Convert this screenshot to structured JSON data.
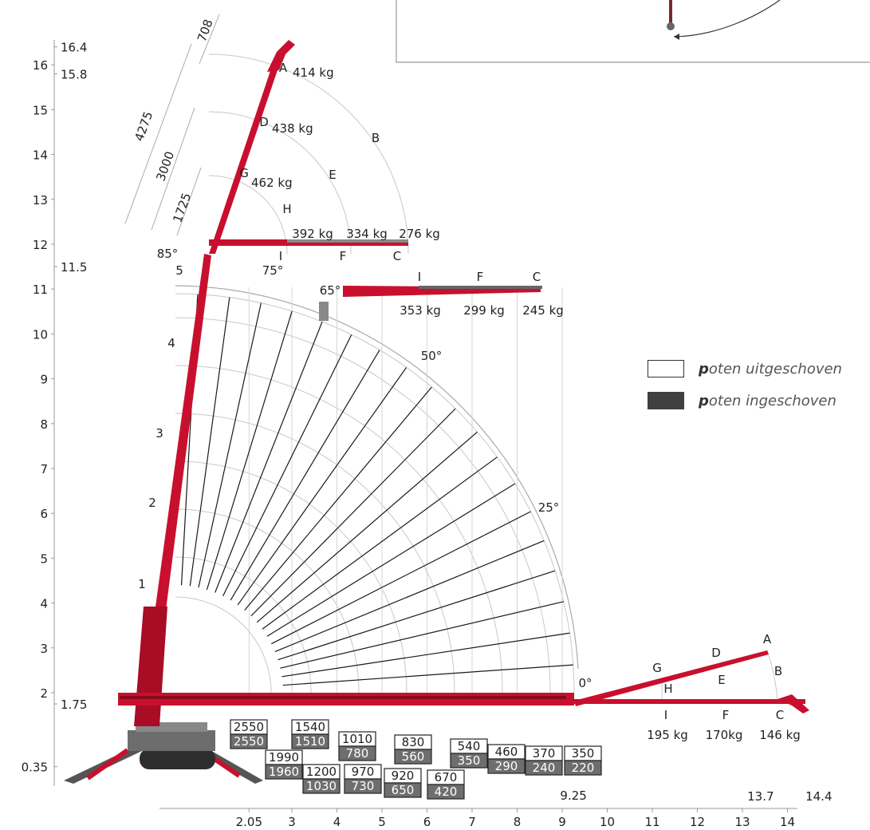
{
  "y_axis_ticks": [
    "16",
    "15",
    "14",
    "13",
    "12",
    "11",
    "10",
    "9",
    "8",
    "7",
    "6",
    "5",
    "4",
    "3",
    "2"
  ],
  "y_axis_marks": [
    "16.4",
    "15.8",
    "11.5",
    "1.75",
    "0.35"
  ],
  "x_axis_ticks": [
    "2.05",
    "3",
    "4",
    "5",
    "6",
    "7",
    "8",
    "9",
    "10",
    "11",
    "12",
    "13",
    "14"
  ],
  "x_axis_marks": [
    "9.25",
    "13.7",
    "14.4"
  ],
  "angles": [
    "85°",
    "75°",
    "65°",
    "50°",
    "25°",
    "0°"
  ],
  "dimensions": [
    "708",
    "4275",
    "3000",
    "1725"
  ],
  "boom_sections": [
    "1",
    "2",
    "3",
    "4",
    "5"
  ],
  "jib_points": [
    "A",
    "B",
    "C",
    "D",
    "E",
    "F",
    "G",
    "H",
    "I"
  ],
  "jib_upper": {
    "A": "414 kg",
    "D": "438 kg",
    "G": "462 kg"
  },
  "jib_85": {
    "I": "392 kg",
    "F": "334 kg",
    "C": "276 kg"
  },
  "jib_65": {
    "I": "353 kg",
    "F": "299 kg",
    "C": "245 kg"
  },
  "jib_0": {
    "I": "195 kg",
    "F": "170kg",
    "C": "146 kg"
  },
  "load_boxes": [
    {
      "out": "2550",
      "in": "2550"
    },
    {
      "out": "1540",
      "in": "1510"
    },
    {
      "out": "1990",
      "in": "1960"
    },
    {
      "out": "1010",
      "in": "780"
    },
    {
      "out": "1200",
      "in": "1030"
    },
    {
      "out": "830",
      "in": "560"
    },
    {
      "out": "970",
      "in": "730"
    },
    {
      "out": "920",
      "in": "650"
    },
    {
      "out": "540",
      "in": "350"
    },
    {
      "out": "670",
      "in": "420"
    },
    {
      "out": "460",
      "in": "290"
    },
    {
      "out": "370",
      "in": "240"
    },
    {
      "out": "350",
      "in": "220"
    }
  ],
  "legend": {
    "extended_first": "p",
    "extended_rest": "oten uitgeschoven",
    "retracted_first": "p",
    "retracted_rest": "oten ingeschoven"
  },
  "colors": {
    "crane_red": "#c8102e",
    "frame": "#4a4a4a",
    "arc_grey": "#bdbdbd",
    "box_dark": "#6e6e6e"
  }
}
